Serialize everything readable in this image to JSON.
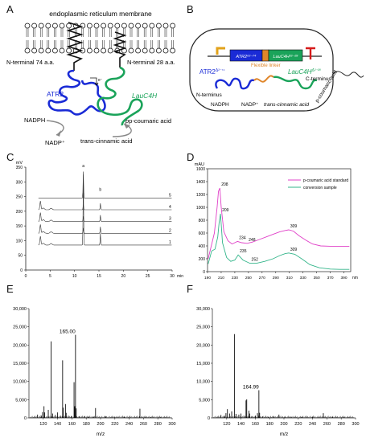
{
  "panels": {
    "A": {
      "letter": "A",
      "membrane_label": "endoplasmic reticulum membrane",
      "n74": "N-terminal 74 a.a.",
      "n28": "N-terminal 28 a.a.",
      "atr2": "ATR2",
      "lauc4h": "LauC4H",
      "nadph": "NADPH",
      "nadp": "NADP⁺",
      "pcoumaric": "p-coumaric acid",
      "transcinnamic": "trans-cinnamic acid",
      "colors": {
        "atr2": "#1a2bd6",
        "c4h": "#1aa35a"
      }
    },
    "B": {
      "letter": "B",
      "atr2_seg": "ATR2⁶³⁻⁷⁴",
      "c4h_seg": "LauC4H²³⁻²⁸",
      "atr2_label": "ATR2",
      "atr2_sup": "Δ²⁻⁷⁴",
      "flex": "Flexible linker",
      "c4h_label": "LauC4H",
      "c4h_sup": "Δ²⁻²⁸",
      "nterm": "N-terminus",
      "cterm": "C-terminus",
      "nadph": "NADPH",
      "nadp": "NADP⁺",
      "transcinnamic": "trans-cinnamic acid",
      "pcoumaric": "p-coumaric acid",
      "colors": {
        "linker": "#e0862a",
        "promoter": "#e2a21a",
        "terminator": "#d61a1a"
      }
    },
    "C": {
      "letter": "C",
      "chart_data": {
        "type": "line",
        "ylabel": "mV",
        "xlabel": "min",
        "x_ticks": [
          0,
          5,
          10,
          15,
          20,
          25,
          30
        ],
        "y_ticks": [
          0,
          50,
          100,
          150,
          200,
          250,
          300,
          350
        ],
        "xlim": [
          0,
          30
        ],
        "ylim": [
          0,
          350
        ],
        "trace_labels": [
          "5",
          "4",
          "3",
          "2",
          "1"
        ],
        "peak_labels": [
          "a",
          "b"
        ],
        "peak_times": [
          11.8,
          15.3
        ]
      }
    },
    "D": {
      "letter": "D",
      "chart_data": {
        "type": "line",
        "ylabel": "mAU",
        "xlabel": "nm",
        "xlim": [
          190,
          400
        ],
        "ylim": [
          0,
          1600
        ],
        "x_ticks": [
          190,
          210,
          230,
          250,
          270,
          290,
          310,
          330,
          350,
          370,
          390
        ],
        "y_ticks": [
          0,
          200,
          400,
          600,
          800,
          1000,
          1200,
          1400,
          1600
        ],
        "series": [
          {
            "name": "p-coumaric acid standard",
            "color": "#e040c8",
            "x": [
              191,
              200,
              204,
              206,
              208,
              210,
              214,
              220,
              226,
              234,
              240,
              248,
              256,
              266,
              276,
              286,
              296,
              304,
              309,
              316,
              324,
              334,
              344,
              356,
              370,
              384,
              398
            ],
            "y": [
              200,
              600,
              1000,
              1250,
              1300,
              1000,
              620,
              480,
              430,
              470,
              450,
              440,
              460,
              500,
              540,
              580,
              620,
              640,
              650,
              630,
              560,
              490,
              430,
              400,
              395,
              395,
              395
            ]
          },
          {
            "name": "conversion sample",
            "color": "#33b58a",
            "x": [
              191,
              196,
              201,
              205,
              207,
              209,
              212,
              218,
              224,
              230,
              235,
              242,
              252,
              262,
              274,
              286,
              296,
              304,
              309,
              318,
              328,
              340,
              354,
              370,
              384,
              398
            ],
            "y": [
              120,
              320,
              350,
              540,
              760,
              900,
              450,
              220,
              160,
              180,
              260,
              180,
              130,
              130,
              160,
              200,
              250,
              280,
              290,
              270,
              200,
              110,
              60,
              40,
              35,
              35
            ]
          }
        ],
        "annotations": [
          {
            "text": "208",
            "x": 208,
            "y": 1300
          },
          {
            "text": "209",
            "x": 209,
            "y": 900
          },
          {
            "text": "234",
            "x": 234,
            "y": 470
          },
          {
            "text": "248",
            "x": 248,
            "y": 440
          },
          {
            "text": "309",
            "x": 309,
            "y": 650
          },
          {
            "text": "235",
            "x": 235,
            "y": 260
          },
          {
            "text": "252",
            "x": 252,
            "y": 130
          },
          {
            "text": "309",
            "x": 309,
            "y": 290
          }
        ]
      }
    },
    "E": {
      "letter": "E",
      "chart_data": {
        "type": "bar",
        "xlabel": "m/z",
        "xlim": [
          100,
          300
        ],
        "ylim": [
          0,
          30000
        ],
        "x_ticks": [
          120,
          140,
          160,
          180,
          200,
          220,
          240,
          260,
          280,
          300
        ],
        "y_ticks": [
          0,
          5000,
          10000,
          15000,
          20000,
          25000,
          30000
        ],
        "y_tick_labels": [
          "0",
          "5,000",
          "10,000",
          "15,000",
          "20,000",
          "25,000",
          "30,000"
        ],
        "annotation": {
          "text": "165.00",
          "x": 165,
          "y": 22800
        },
        "peaks": [
          [
            112,
            900
          ],
          [
            117,
            700
          ],
          [
            119,
            1600
          ],
          [
            121,
            3200
          ],
          [
            122,
            1500
          ],
          [
            127,
            2200
          ],
          [
            131,
            21000
          ],
          [
            133,
            1200
          ],
          [
            137,
            800
          ],
          [
            140,
            1500
          ],
          [
            144,
            600
          ],
          [
            147,
            15800
          ],
          [
            148,
            2800
          ],
          [
            151,
            3800
          ],
          [
            152,
            1400
          ],
          [
            155,
            600
          ],
          [
            159,
            500
          ],
          [
            163,
            9800
          ],
          [
            164,
            3200
          ],
          [
            165,
            22800
          ],
          [
            166,
            2600
          ],
          [
            170,
            400
          ],
          [
            178,
            500
          ],
          [
            183,
            300
          ],
          [
            190,
            350
          ],
          [
            193,
            2700
          ],
          [
            207,
            400
          ],
          [
            220,
            300
          ],
          [
            233,
            250
          ],
          [
            255,
            2500
          ],
          [
            262,
            300
          ],
          [
            270,
            250
          ],
          [
            284,
            250
          ]
        ]
      }
    },
    "F": {
      "letter": "F",
      "chart_data": {
        "type": "bar",
        "xlabel": "m/z",
        "xlim": [
          100,
          300
        ],
        "ylim": [
          0,
          30000
        ],
        "x_ticks": [
          120,
          140,
          160,
          180,
          200,
          220,
          240,
          260,
          280,
          300
        ],
        "y_ticks": [
          0,
          5000,
          10000,
          15000,
          20000,
          25000,
          30000
        ],
        "y_tick_labels": [
          "0",
          "5,000",
          "10,000",
          "15,000",
          "20,000",
          "25,000",
          "30,000"
        ],
        "annotation": {
          "text": "164.99",
          "x": 165,
          "y": 7600
        },
        "peaks": [
          [
            112,
            800
          ],
          [
            117,
            600
          ],
          [
            119,
            1300
          ],
          [
            121,
            2400
          ],
          [
            124,
            1200
          ],
          [
            127,
            1800
          ],
          [
            131,
            23000
          ],
          [
            133,
            1100
          ],
          [
            137,
            900
          ],
          [
            140,
            1200
          ],
          [
            144,
            600
          ],
          [
            147,
            4800
          ],
          [
            148,
            5100
          ],
          [
            151,
            2000
          ],
          [
            152,
            1200
          ],
          [
            155,
            500
          ],
          [
            160,
            600
          ],
          [
            163,
            1300
          ],
          [
            165,
            7600
          ],
          [
            166,
            1400
          ],
          [
            170,
            400
          ],
          [
            178,
            300
          ],
          [
            186,
            350
          ],
          [
            193,
            900
          ],
          [
            201,
            300
          ],
          [
            210,
            300
          ],
          [
            225,
            300
          ],
          [
            240,
            250
          ],
          [
            255,
            1300
          ],
          [
            268,
            300
          ],
          [
            284,
            250
          ]
        ]
      }
    }
  }
}
